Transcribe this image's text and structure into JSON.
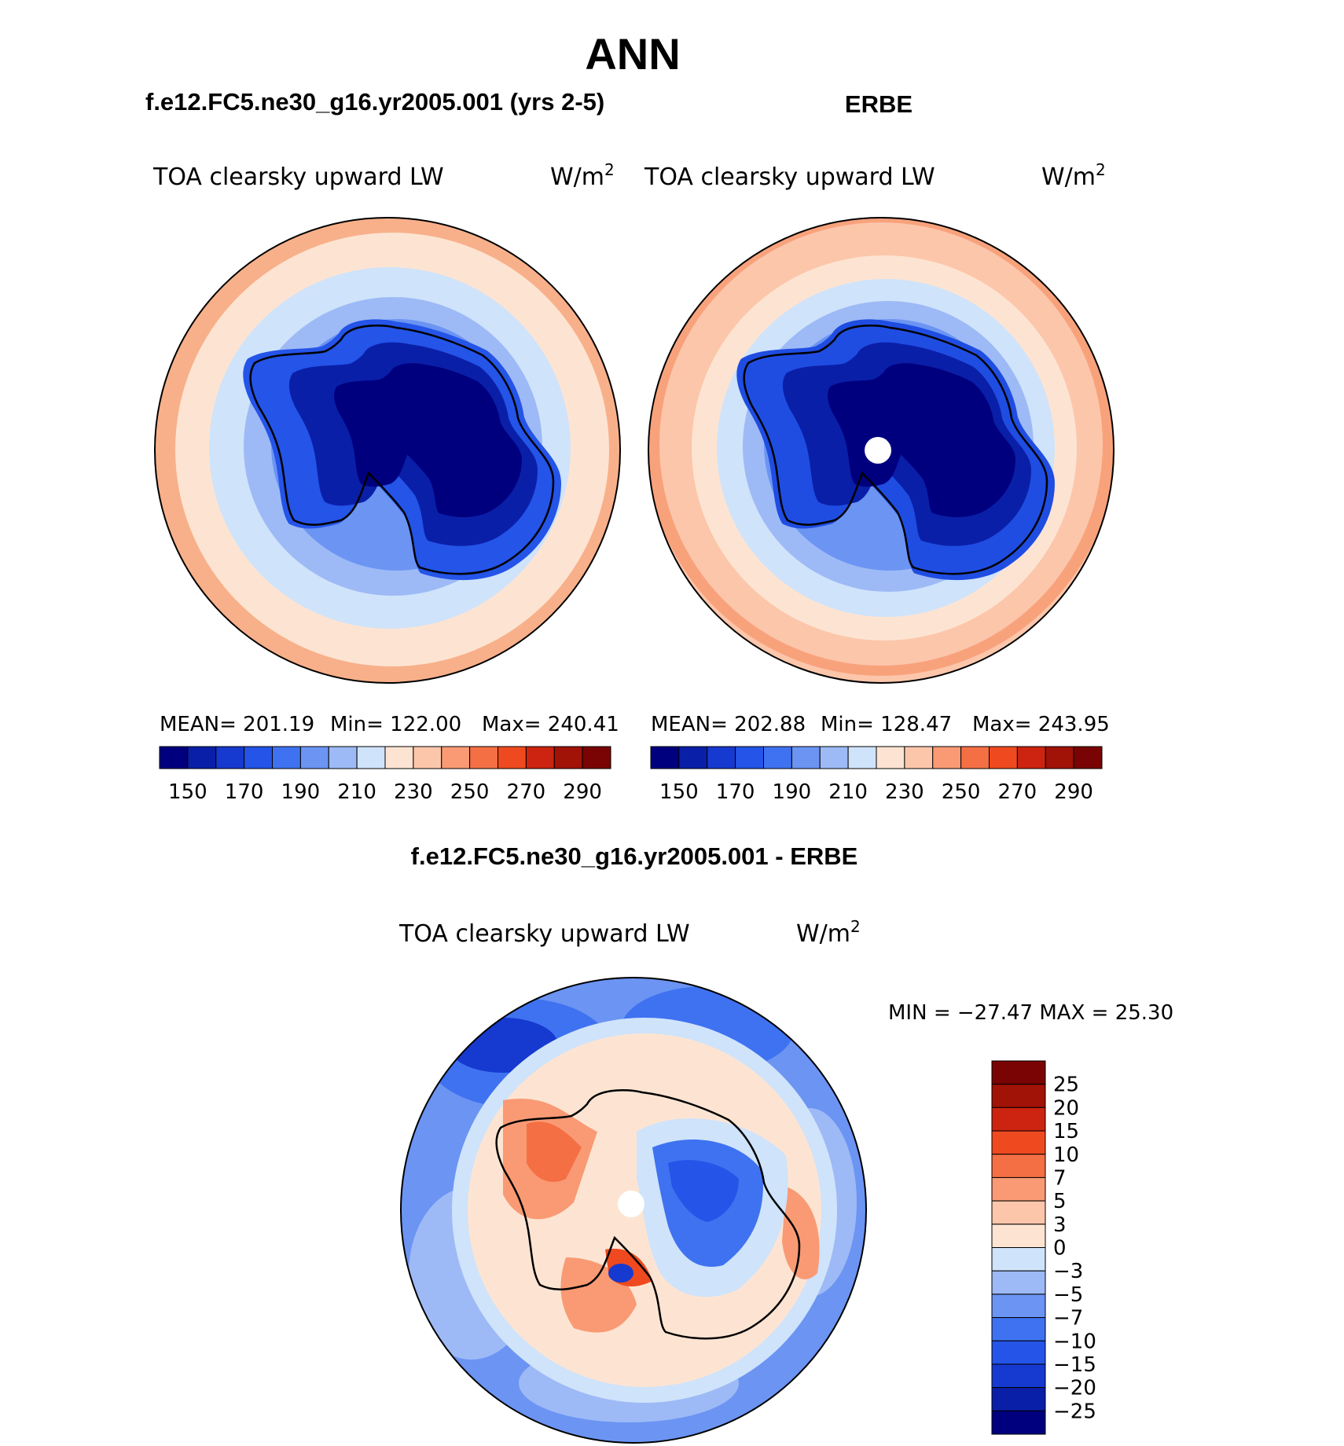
{
  "title": "ANN",
  "chart_data": [
    {
      "type": "heatmap",
      "title": "f.e12.FC5.ne30_g16.yr2005.001 (yrs 2-5)",
      "variable": "TOA clearsky upward LW",
      "units_base": "W/m",
      "units_exp": "2",
      "stats": {
        "mean": "MEAN= 201.19",
        "min": "Min= 122.00",
        "max": "Max= 240.41"
      },
      "levels": [
        150,
        160,
        170,
        180,
        190,
        200,
        210,
        220,
        230,
        240,
        250,
        260,
        270,
        280,
        290
      ],
      "colorbar_labels": [
        "150",
        "170",
        "190",
        "210",
        "230",
        "250",
        "270",
        "290"
      ],
      "region": "Antarctica (polar stereographic, south pole)",
      "has_pole_gap": false
    },
    {
      "type": "heatmap",
      "title": "ERBE",
      "variable": "TOA clearsky upward LW",
      "units_base": "W/m",
      "units_exp": "2",
      "stats": {
        "mean": "MEAN= 202.88",
        "min": "Min= 128.47",
        "max": "Max= 243.95"
      },
      "levels": [
        150,
        160,
        170,
        180,
        190,
        200,
        210,
        220,
        230,
        240,
        250,
        260,
        270,
        280,
        290
      ],
      "colorbar_labels": [
        "150",
        "170",
        "190",
        "210",
        "230",
        "250",
        "270",
        "290"
      ],
      "region": "Antarctica (polar stereographic, south pole)",
      "has_pole_gap": true
    },
    {
      "type": "heatmap",
      "title": "f.e12.FC5.ne30_g16.yr2005.001 - ERBE",
      "variable": "TOA clearsky upward LW",
      "units_base": "W/m",
      "units_exp": "2",
      "minmax": "MIN = −27.47 MAX =  25.30",
      "levels": [
        25,
        20,
        15,
        10,
        7,
        5,
        3,
        0,
        -3,
        -5,
        -7,
        -10,
        -15,
        -20,
        -25
      ],
      "colorbar_labels": [
        "25",
        "20",
        "15",
        "10",
        "7",
        "5",
        "3",
        "0",
        "−3",
        "−5",
        "−7",
        "−10",
        "−15",
        "−20",
        "−25"
      ],
      "region": "Antarctica (polar stereographic, south pole)",
      "has_pole_gap": true
    }
  ],
  "palette": [
    "#00007f",
    "#0a1fa8",
    "#1639d0",
    "#2454e8",
    "#3f72f0",
    "#6b94f3",
    "#9dbaf6",
    "#cfe3fb",
    "#fde4d2",
    "#fcc6ab",
    "#f99a74",
    "#f56f44",
    "#ef4a1f",
    "#cc2410",
    "#a11207",
    "#7a0403"
  ]
}
